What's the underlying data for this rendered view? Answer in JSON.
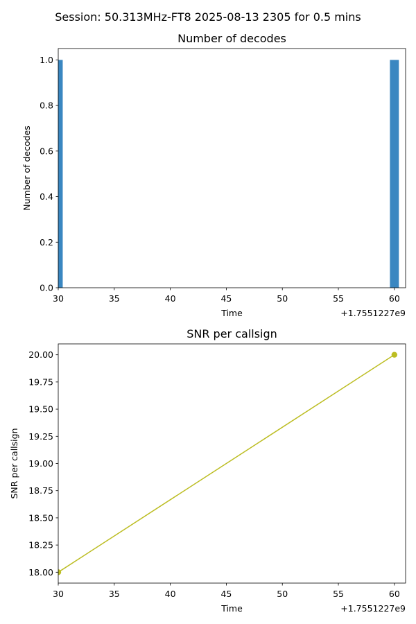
{
  "figure": {
    "suptitle": "Session: 50.313MHz-FT8 2025-08-13 2305 for 0.5 mins"
  },
  "chart_data": [
    {
      "type": "bar",
      "title": "Number of decodes",
      "xlabel": "Time",
      "ylabel": "Number of decodes",
      "x_offset_label": "+1.7551227e9",
      "x_offset": 1755122700,
      "xlim": [
        30,
        61
      ],
      "ylim": [
        0,
        1.05
      ],
      "xticks": [
        30,
        35,
        40,
        45,
        50,
        55,
        60
      ],
      "yticks": [
        "0.0",
        "0.2",
        "0.4",
        "0.6",
        "0.8",
        "1.0"
      ],
      "bar_width": 0.8,
      "bars": [
        {
          "x": 30,
          "value": 1
        },
        {
          "x": 60,
          "value": 1
        }
      ],
      "color": "#3a87c1",
      "grid": false
    },
    {
      "type": "line",
      "title": "SNR per callsign",
      "xlabel": "Time",
      "ylabel": "SNR per callsign",
      "x_offset_label": "+1.7551227e9",
      "x_offset": 1755122700,
      "xlim": [
        30,
        61
      ],
      "ylim": [
        17.9,
        20.1
      ],
      "xticks": [
        30,
        35,
        40,
        45,
        50,
        55,
        60
      ],
      "yticks": [
        "18.00",
        "18.25",
        "18.50",
        "18.75",
        "19.00",
        "19.25",
        "19.50",
        "19.75",
        "20.00"
      ],
      "series": [
        {
          "x": [
            30,
            60
          ],
          "y": [
            18,
            20
          ],
          "color": "#bcbd22",
          "marker": "circle"
        }
      ],
      "grid": false
    }
  ]
}
